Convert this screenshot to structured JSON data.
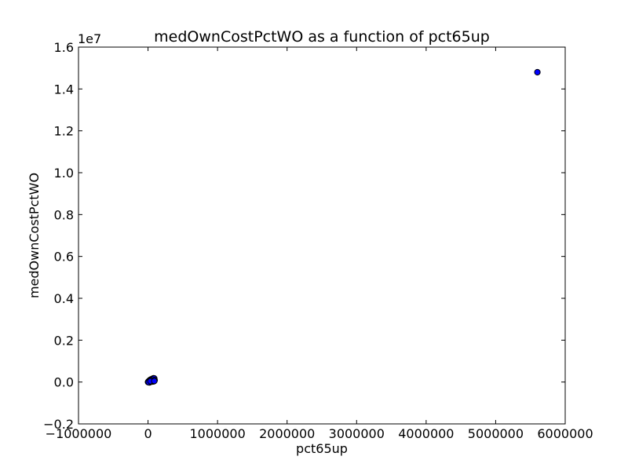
{
  "chart_data": {
    "type": "scatter",
    "title": "medOwnCostPctWO as a function of pct65up",
    "xlabel": "pct65up",
    "ylabel": "medOwnCostPctWO",
    "xlim": [
      -1000000,
      6000000
    ],
    "ylim": [
      -0.2,
      1.6
    ],
    "y_offset_label": "1e7",
    "x_ticks": [
      -1000000,
      0,
      1000000,
      2000000,
      3000000,
      4000000,
      5000000,
      6000000
    ],
    "x_tick_labels": [
      "−1000000",
      "0",
      "1000000",
      "2000000",
      "3000000",
      "4000000",
      "5000000",
      "6000000"
    ],
    "y_ticks": [
      -0.2,
      0.0,
      0.2,
      0.4,
      0.6,
      0.8,
      1.0,
      1.2,
      1.4,
      1.6
    ],
    "y_tick_labels": [
      "−0.2",
      "0.0",
      "0.2",
      "0.4",
      "0.6",
      "0.8",
      "1.0",
      "1.2",
      "1.4",
      "1.6"
    ],
    "grid": false,
    "marker_color": "#0000ff",
    "marker_edge_color": "#000000",
    "points": [
      {
        "x": 5600000,
        "y": 1.48
      },
      {
        "x": 0,
        "y": 0.0
      },
      {
        "x": 5000,
        "y": 0.002
      },
      {
        "x": 10000,
        "y": 0.004
      },
      {
        "x": 15000,
        "y": 0.005
      },
      {
        "x": 20000,
        "y": 0.006
      },
      {
        "x": 25000,
        "y": 0.008
      },
      {
        "x": 30000,
        "y": 0.01
      },
      {
        "x": 40000,
        "y": 0.012
      },
      {
        "x": 45000,
        "y": 0.008
      },
      {
        "x": 50000,
        "y": 0.013
      },
      {
        "x": 55000,
        "y": 0.005
      },
      {
        "x": 60000,
        "y": 0.015
      },
      {
        "x": 65000,
        "y": 0.011
      },
      {
        "x": 70000,
        "y": 0.016
      },
      {
        "x": 75000,
        "y": 0.007
      },
      {
        "x": 80000,
        "y": 0.018
      },
      {
        "x": 85000,
        "y": 0.012
      },
      {
        "x": 90000,
        "y": 0.017
      },
      {
        "x": 95000,
        "y": 0.009
      },
      {
        "x": 20000,
        "y": -0.002
      },
      {
        "x": 10000,
        "y": -0.001
      },
      {
        "x": 60000,
        "y": 0.002
      },
      {
        "x": 80000,
        "y": 0.003
      },
      {
        "x": 35000,
        "y": 0.004
      },
      {
        "x": 90000,
        "y": 0.005
      }
    ]
  }
}
